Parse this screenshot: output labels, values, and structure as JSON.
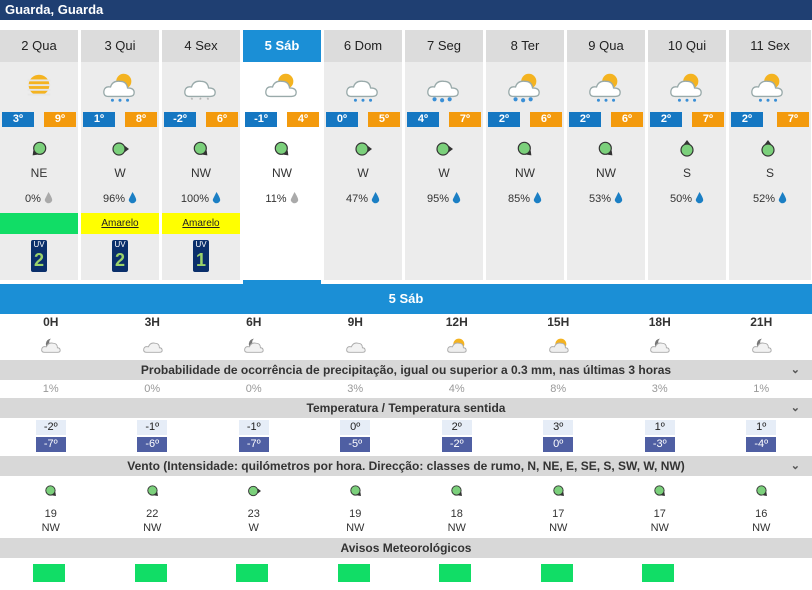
{
  "location": "Guarda, Guarda",
  "days": [
    {
      "label": "2 Qua",
      "tmin": "3º",
      "tmax": "9º",
      "wind_dir": "NE",
      "precip": "0%",
      "warning": "",
      "warning_color": "#11dd66",
      "uv": "2",
      "uv_label": "UV",
      "icon": "hazy-sun-icon",
      "selected": false
    },
    {
      "label": "3 Qui",
      "tmin": "1º",
      "tmax": "8º",
      "wind_dir": "W",
      "precip": "96%",
      "warning": "Amarelo",
      "warning_color": "#ffff00",
      "uv": "2",
      "uv_label": "UV",
      "icon": "sun-cloud-rain-icon",
      "selected": false
    },
    {
      "label": "4 Sex",
      "tmin": "-2º",
      "tmax": "6º",
      "wind_dir": "NW",
      "precip": "100%",
      "warning": "Amarelo",
      "warning_color": "#ffff00",
      "uv": "1",
      "uv_label": "UV",
      "icon": "cloud-snow-icon",
      "selected": false
    },
    {
      "label": "5 Sáb",
      "tmin": "-1º",
      "tmax": "4º",
      "wind_dir": "NW",
      "precip": "11%",
      "warning": "",
      "warning_color": "",
      "uv": "",
      "uv_label": "",
      "icon": "sun-cloud-icon",
      "selected": true
    },
    {
      "label": "6 Dom",
      "tmin": "0º",
      "tmax": "5º",
      "wind_dir": "W",
      "precip": "47%",
      "warning": "",
      "warning_color": "",
      "uv": "",
      "uv_label": "",
      "icon": "cloud-rain-icon",
      "selected": false
    },
    {
      "label": "7 Seg",
      "tmin": "4º",
      "tmax": "7º",
      "wind_dir": "W",
      "precip": "95%",
      "warning": "",
      "warning_color": "",
      "uv": "",
      "uv_label": "",
      "icon": "cloud-heavy-rain-icon",
      "selected": false
    },
    {
      "label": "8 Ter",
      "tmin": "2º",
      "tmax": "6º",
      "wind_dir": "NW",
      "precip": "85%",
      "warning": "",
      "warning_color": "",
      "uv": "",
      "uv_label": "",
      "icon": "sun-cloud-heavy-rain-icon",
      "selected": false
    },
    {
      "label": "9 Qua",
      "tmin": "2º",
      "tmax": "6º",
      "wind_dir": "NW",
      "precip": "53%",
      "warning": "",
      "warning_color": "",
      "uv": "",
      "uv_label": "",
      "icon": "sun-cloud-rain-icon",
      "selected": false
    },
    {
      "label": "10 Qui",
      "tmin": "2º",
      "tmax": "7º",
      "wind_dir": "S",
      "precip": "50%",
      "warning": "",
      "warning_color": "",
      "uv": "",
      "uv_label": "",
      "icon": "sun-cloud-rain-icon",
      "selected": false
    },
    {
      "label": "11 Sex",
      "tmin": "2º",
      "tmax": "7º",
      "wind_dir": "S",
      "precip": "52%",
      "warning": "",
      "warning_color": "",
      "uv": "",
      "uv_label": "",
      "icon": "sun-cloud-rain-icon",
      "selected": false
    }
  ],
  "selected_day_title": "5 Sáb",
  "hours": [
    "0H",
    "3H",
    "6H",
    "9H",
    "12H",
    "15H",
    "18H",
    "21H"
  ],
  "hour_icons": [
    "moon-cloud-icon",
    "cloud-icon",
    "moon-cloud-icon",
    "cloud-icon",
    "sun-cloud-icon",
    "sun-cloud-icon",
    "moon-cloud-icon",
    "moon-cloud-icon"
  ],
  "sections": {
    "precip_title": "Probabilidade de ocorrência de precipitação, igual ou superior a 0.3 mm, nas últimas 3 horas",
    "temp_title": "Temperatura / Temperatura sentida",
    "wind_title": "Vento (Intensidade: quilómetros por hora. Direcção: classes de rumo, N, NE, E, SE, S, SW, W, NW)",
    "warnings_title": "Avisos Meteorológicos"
  },
  "hourly_precip": [
    "1%",
    "0%",
    "0%",
    "3%",
    "4%",
    "8%",
    "3%",
    "1%"
  ],
  "hourly_temp": [
    "-2º",
    "-1º",
    "-1º",
    "0º",
    "2º",
    "3º",
    "1º",
    "1º"
  ],
  "hourly_feels": [
    "-7º",
    "-6º",
    "-7º",
    "-5º",
    "-2º",
    "0º",
    "-3º",
    "-4º"
  ],
  "hourly_wind_speed": [
    "19",
    "22",
    "23",
    "19",
    "18",
    "17",
    "17",
    "16"
  ],
  "hourly_wind_dir": [
    "NW",
    "NW",
    "W",
    "NW",
    "NW",
    "NW",
    "NW",
    "NW"
  ],
  "warning_boxes": [
    true,
    true,
    true,
    true,
    true,
    true,
    true,
    false
  ],
  "colors": {
    "header": "#1f3f72",
    "accent": "#1b8fd6",
    "tmin": "#1577c2",
    "tmax": "#f39a0d",
    "warning_green": "#11dd66",
    "warning_yellow": "#ffff00"
  }
}
